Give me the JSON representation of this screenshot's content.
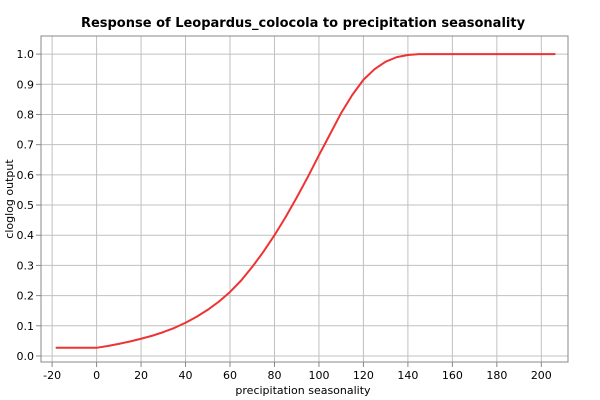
{
  "chart_data": {
    "type": "line",
    "title": "Response of Leopardus_colocola to precipitation seasonality",
    "xlabel": "precipitation seasonality",
    "ylabel": "cloglog output",
    "xlim": [
      -25,
      212
    ],
    "ylim": [
      -0.02,
      1.06
    ],
    "x_ticks": [
      "-20",
      "0",
      "20",
      "40",
      "60",
      "80",
      "100",
      "120",
      "140",
      "160",
      "180",
      "200"
    ],
    "y_ticks": [
      "0.0",
      "0.1",
      "0.2",
      "0.3",
      "0.4",
      "0.5",
      "0.6",
      "0.7",
      "0.8",
      "0.9",
      "1.0"
    ],
    "grid": true,
    "series": [
      {
        "name": "response",
        "color": "#ee3333",
        "x": [
          -18,
          -10,
          0,
          5,
          10,
          15,
          20,
          25,
          30,
          35,
          40,
          45,
          50,
          55,
          60,
          65,
          70,
          75,
          80,
          85,
          90,
          95,
          100,
          105,
          110,
          115,
          120,
          125,
          130,
          135,
          140,
          145,
          150,
          160,
          170,
          180,
          190,
          200,
          206
        ],
        "y": [
          0.027,
          0.027,
          0.027,
          0.033,
          0.04,
          0.048,
          0.057,
          0.067,
          0.079,
          0.093,
          0.11,
          0.13,
          0.153,
          0.18,
          0.212,
          0.25,
          0.295,
          0.345,
          0.4,
          0.46,
          0.525,
          0.593,
          0.665,
          0.735,
          0.805,
          0.865,
          0.915,
          0.95,
          0.975,
          0.99,
          0.997,
          1.0,
          1.0,
          1.0,
          1.0,
          1.0,
          1.0,
          1.0,
          1.0
        ]
      }
    ]
  }
}
